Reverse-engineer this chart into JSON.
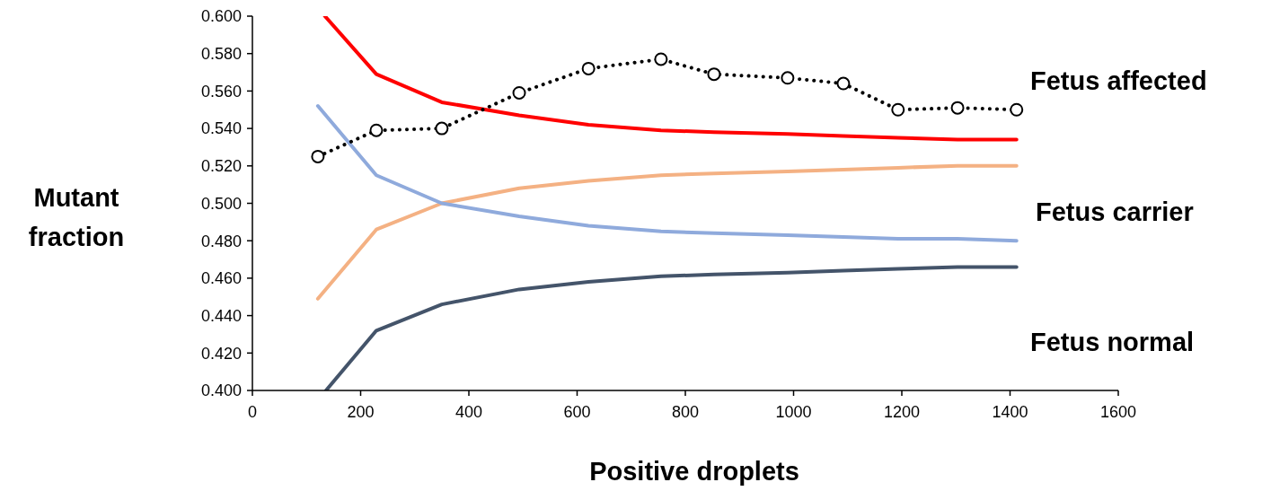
{
  "chart_data": {
    "type": "line",
    "xlabel": "Positive droplets",
    "ylabel": "Mutant fraction",
    "xlim": [
      0,
      1600
    ],
    "xticks": [
      0,
      200,
      400,
      600,
      800,
      1000,
      1200,
      1400,
      1600
    ],
    "ylim": [
      0.4,
      0.6
    ],
    "yticks": [
      {
        "value": 0.4,
        "label": "0.400"
      },
      {
        "value": 0.42,
        "label": "0.420"
      },
      {
        "value": 0.44,
        "label": "0.440"
      },
      {
        "value": 0.46,
        "label": "0.460"
      },
      {
        "value": 0.48,
        "label": "0.480"
      },
      {
        "value": 0.5,
        "label": "0.500"
      },
      {
        "value": 0.52,
        "label": "0.520"
      },
      {
        "value": 0.54,
        "label": "0.540"
      },
      {
        "value": 0.56,
        "label": "0.560"
      },
      {
        "value": 0.58,
        "label": "0.580"
      },
      {
        "value": 0.6,
        "label": "0.600"
      }
    ],
    "grid": false,
    "x": [
      121,
      229,
      350,
      493,
      621,
      755,
      853,
      989,
      1092,
      1193,
      1303,
      1412
    ],
    "series": [
      {
        "color": "#ff0000",
        "line_style": "solid",
        "marker": "none",
        "x": [
          134,
          229,
          350,
          493,
          621,
          755,
          853,
          989,
          1092,
          1193,
          1303,
          1412
        ],
        "values": [
          0.6,
          0.569,
          0.554,
          0.547,
          0.542,
          0.539,
          0.538,
          0.537,
          0.536,
          0.535,
          0.534,
          0.534
        ]
      },
      {
        "color": "#f4b183",
        "line_style": "solid",
        "marker": "none",
        "values": [
          0.449,
          0.486,
          0.5,
          0.508,
          0.512,
          0.515,
          0.516,
          0.517,
          0.518,
          0.519,
          0.52,
          0.52
        ]
      },
      {
        "color": "#8faadc",
        "line_style": "solid",
        "marker": "none",
        "values": [
          0.552,
          0.515,
          0.5,
          0.493,
          0.488,
          0.485,
          0.484,
          0.483,
          0.482,
          0.481,
          0.481,
          0.48
        ]
      },
      {
        "color": "#44546a",
        "line_style": "solid",
        "marker": "none",
        "x": [
          136,
          229,
          350,
          493,
          621,
          755,
          853,
          989,
          1092,
          1193,
          1303,
          1412
        ],
        "values": [
          0.4,
          0.432,
          0.446,
          0.454,
          0.458,
          0.461,
          0.462,
          0.463,
          0.464,
          0.465,
          0.466,
          0.466
        ]
      },
      {
        "color": "#000000",
        "line_style": "dotted",
        "marker": "circle",
        "values": [
          0.525,
          0.539,
          0.54,
          0.559,
          0.572,
          0.577,
          0.569,
          0.567,
          0.564,
          0.55,
          0.551,
          0.55
        ]
      }
    ],
    "annotations": [
      "Fetus affected",
      "Fetus carrier",
      "Fetus normal"
    ]
  }
}
